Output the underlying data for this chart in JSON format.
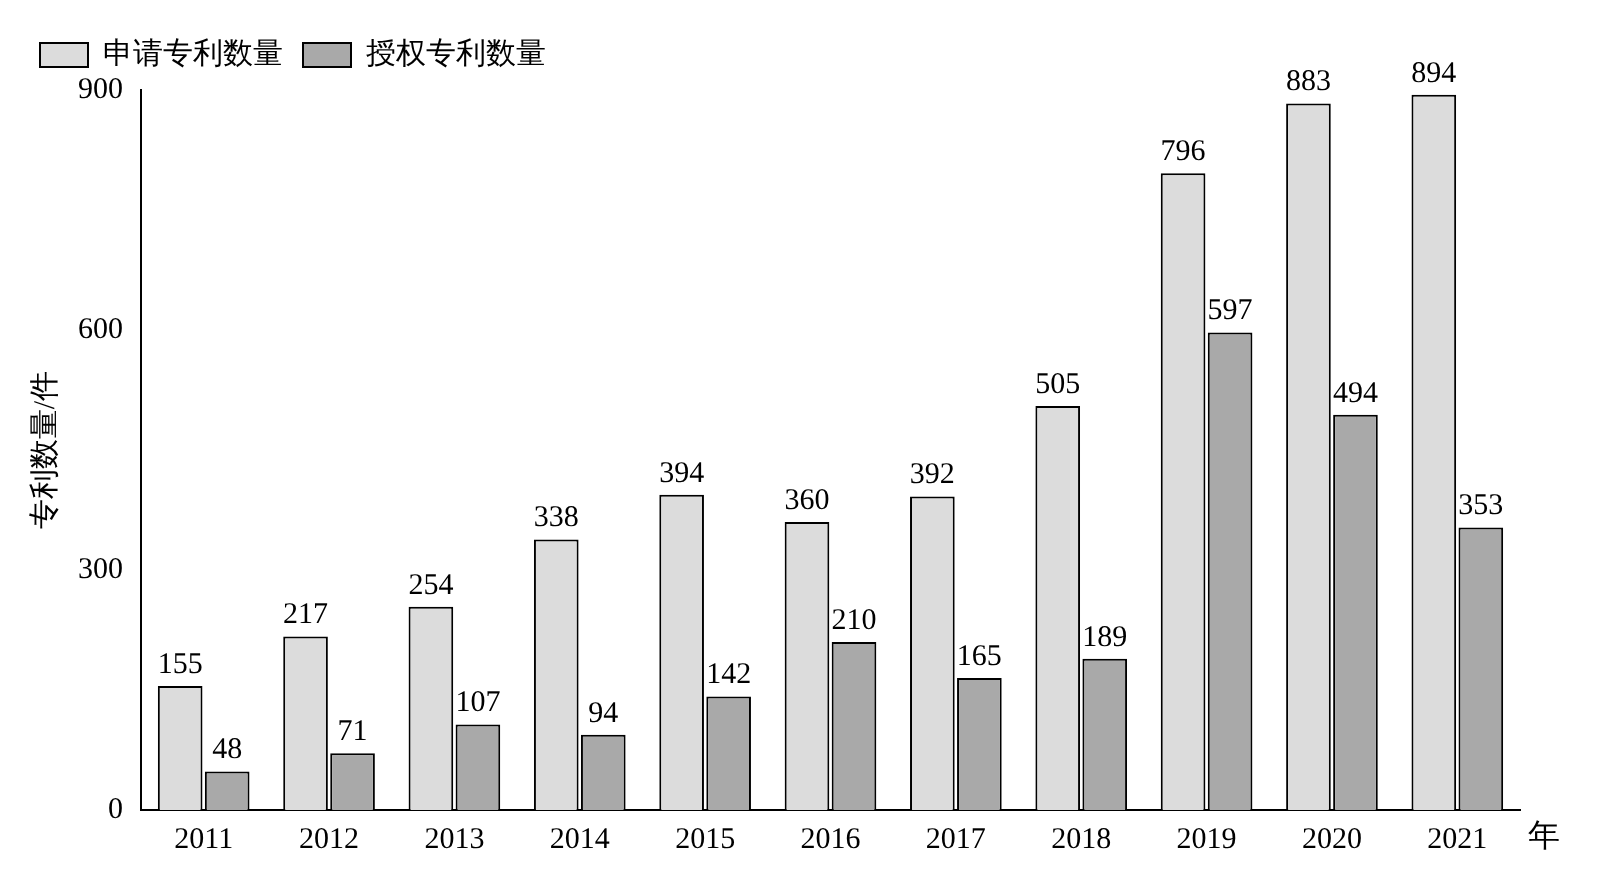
{
  "chart_data": {
    "type": "bar",
    "ylabel": "专利数量/件",
    "xlabel": "年",
    "categories": [
      "2011",
      "2012",
      "2013",
      "2014",
      "2015",
      "2016",
      "2017",
      "2018",
      "2019",
      "2020",
      "2021"
    ],
    "series": [
      {
        "name": "申请专利数量",
        "color": "#dcdcdc",
        "values": [
          155,
          217,
          254,
          338,
          394,
          360,
          392,
          505,
          796,
          883,
          894
        ]
      },
      {
        "name": "授权专利数量",
        "color": "#a9a9a9",
        "values": [
          48,
          71,
          107,
          94,
          142,
          210,
          165,
          189,
          597,
          494,
          353
        ]
      }
    ],
    "ylim": [
      0,
      900
    ],
    "yticks": [
      0,
      300,
      600,
      900
    ],
    "grid": false,
    "legend": "top left",
    "data_labels": true
  }
}
